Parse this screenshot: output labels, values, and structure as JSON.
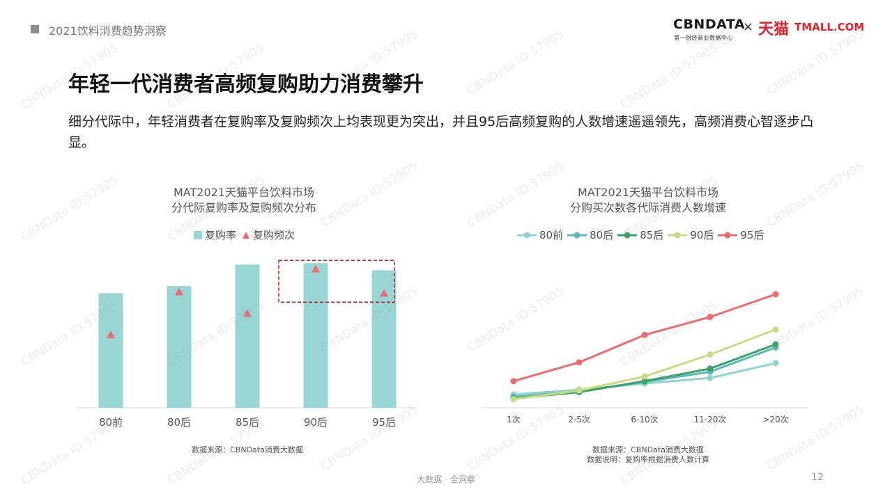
{
  "header": {
    "label": "2021饮料消费趋势洞察"
  },
  "logo": {
    "cbn": "CBNDATA",
    "cbn_sub": "第一财经商业数据中心",
    "times": "×",
    "tmall_cn": "天猫",
    "tmall_en": "TMALL.COM"
  },
  "title": "年轻一代消费者高频复购助力消费攀升",
  "subtitle": "细分代际中，年轻消费者在复购率及复购频次上均表现更为突出，并且95后高频复购的人数增速遥遥领先，高频消费心智逐步凸显。",
  "watermark": "CBNData ID:57905",
  "footer": "大数据 · 全洞察",
  "page_number": "12",
  "colors": {
    "bar": "#98d6d6",
    "triangle": "#ef6b6b",
    "highlight_box": "#c0141c",
    "s80q": "#8fd3d3",
    "s80h": "#5ab9bd",
    "s85": "#3aa262",
    "s90": "#c6dc7f",
    "s95": "#ef6b6b"
  },
  "chart_data": [
    {
      "type": "bar",
      "title_line1": "MAT2021天猫平台饮料市场",
      "title_line2": "分代际复购率及复购频次分布",
      "legend": {
        "bar": "复购率",
        "marker": "复购频次"
      },
      "categories": [
        "80前",
        "80后",
        "85后",
        "90后",
        "95后"
      ],
      "series": [
        {
          "name": "复购率",
          "values": [
            80,
            85,
            100,
            101,
            96
          ]
        },
        {
          "name": "复购频次",
          "values": [
            51,
            81,
            66,
            97,
            80
          ]
        }
      ],
      "ylim": [
        0,
        105
      ],
      "highlight": "90后-95后",
      "source": "数据来源：CBNData消费大数据"
    },
    {
      "type": "line",
      "title_line1": "MAT2021天猫平台饮料市场",
      "title_line2": "分购买次数各代际消费人数增速",
      "categories": [
        "1次",
        "2-5次",
        "6-10次",
        "11-20次",
        ">20次"
      ],
      "series": [
        {
          "name": "80前",
          "values": [
            17,
            23,
            31,
            38,
            57
          ]
        },
        {
          "name": "80后",
          "values": [
            14,
            21,
            33,
            46,
            77
          ]
        },
        {
          "name": "85后",
          "values": [
            12,
            20,
            34,
            50,
            81
          ]
        },
        {
          "name": "90后",
          "values": [
            11,
            22,
            40,
            68,
            100
          ]
        },
        {
          "name": "95后",
          "values": [
            34,
            58,
            93,
            116,
            145
          ]
        }
      ],
      "ylim": [
        0,
        160
      ],
      "source_line1": "数据来源：CBNData消费大数据",
      "source_line2": "数据说明：复购率根据消费人数计算"
    }
  ]
}
